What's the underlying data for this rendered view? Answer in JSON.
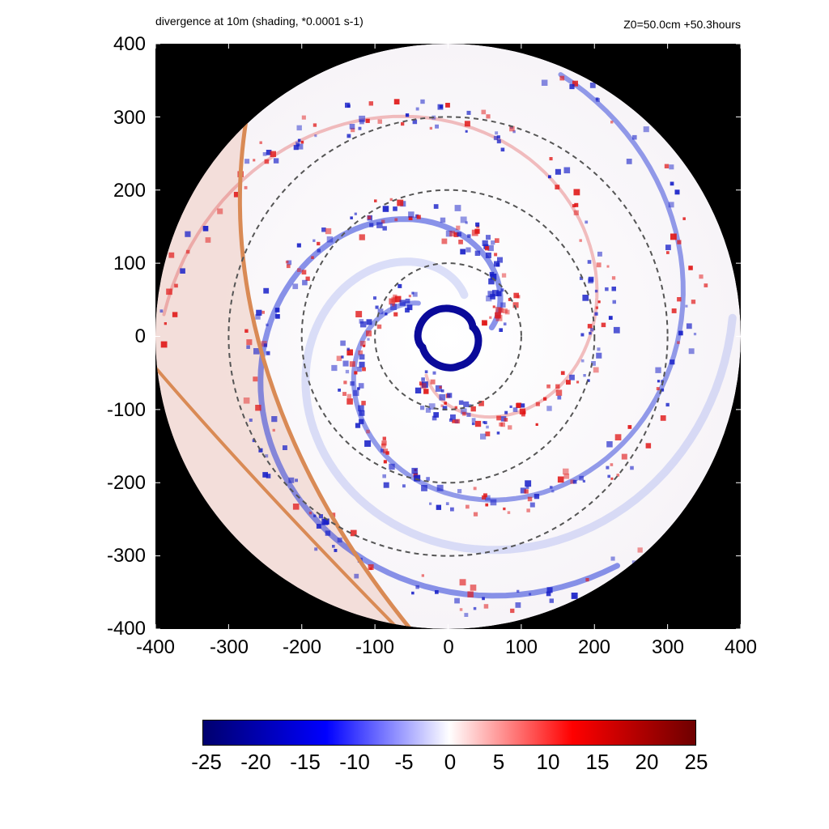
{
  "title": "divergence at 10m (shading, *0.0001 s-1)",
  "info": "Z0=50.0cm  +50.3hours",
  "chart_data": {
    "type": "heatmap",
    "title": "divergence at 10m (shading, *0.0001 s-1)",
    "xlim": [
      -400,
      400
    ],
    "ylim": [
      -400,
      400
    ],
    "x_ticks": [
      "-400",
      "-300",
      "-200",
      "-100",
      "0",
      "100",
      "200",
      "300",
      "400"
    ],
    "y_ticks": [
      "400",
      "300",
      "200",
      "100",
      "0",
      "-100",
      "-200",
      "-300",
      "-400"
    ],
    "domain_radius": 400,
    "range_circles_radius": [
      100,
      200,
      300
    ],
    "colorbar": {
      "range": [
        -25,
        25
      ],
      "ticks": [
        "-25",
        "-20",
        "-15",
        "-10",
        "-5",
        "0",
        "5",
        "10",
        "15",
        "20",
        "25"
      ],
      "colors": [
        "#00006e",
        "#0000ff",
        "#ffffff",
        "#ff0000",
        "#6e0000"
      ]
    },
    "background_color": "#000000",
    "coast_color": "#d98a55"
  }
}
